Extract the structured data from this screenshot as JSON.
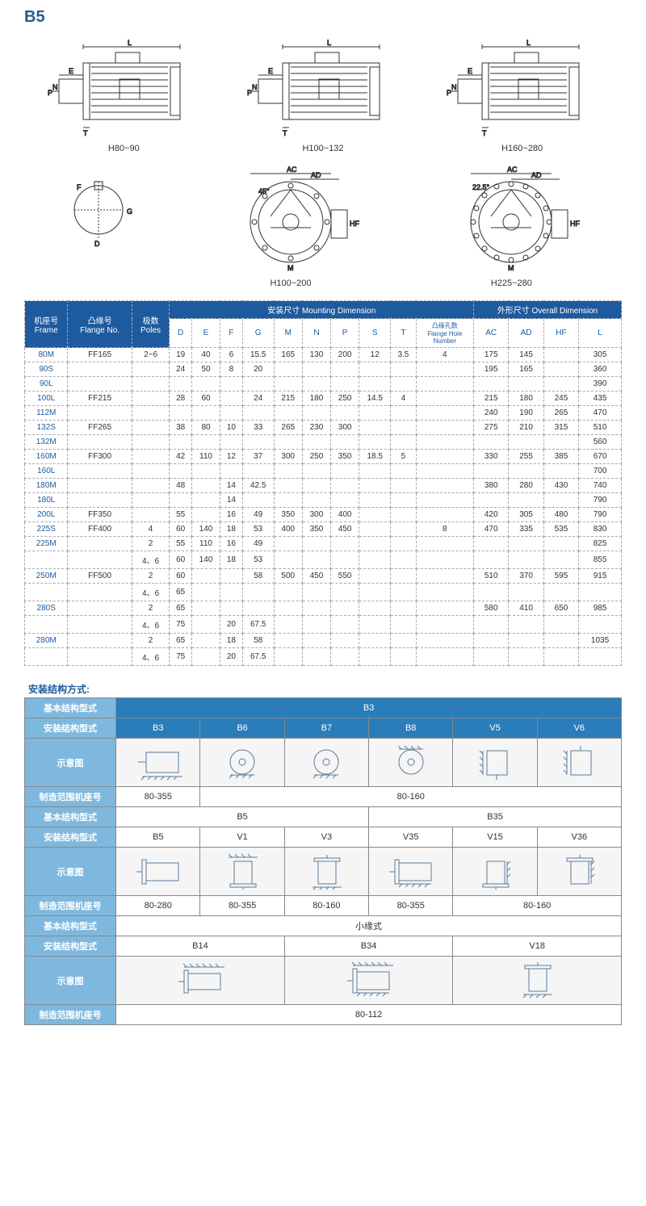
{
  "title": "B5",
  "diagrams": {
    "row1": [
      {
        "label": "H80~90",
        "dims": [
          "L",
          "E",
          "N",
          "P",
          "T"
        ]
      },
      {
        "label": "H100~132",
        "dims": [
          "L",
          "E",
          "N",
          "P",
          "T"
        ]
      },
      {
        "label": "H160~280",
        "dims": [
          "L",
          "E",
          "N",
          "P",
          "T"
        ]
      }
    ],
    "row2": [
      {
        "label": "",
        "dims": [
          "F",
          "D",
          "G"
        ]
      },
      {
        "label": "H100~200",
        "dims": [
          "AC",
          "AD",
          "45°",
          "HF",
          "M"
        ]
      },
      {
        "label": "H225~280",
        "dims": [
          "AC",
          "AD",
          "22.5°",
          "HF",
          "M"
        ]
      }
    ]
  },
  "mainTable": {
    "headerGroup1": "安装尺寸 Mounting Dimension",
    "headerGroup2": "外形尺寸 Overall Dimension",
    "columns": {
      "frame": "机座号\nFrame",
      "flange": "凸缘号\nFlange No.",
      "poles": "极数\nPoles",
      "D": "D",
      "E": "E",
      "F": "F",
      "G": "G",
      "M": "M",
      "N": "N",
      "P": "P",
      "S": "S",
      "T": "T",
      "flangeHole": "凸缘孔数\nFlange Hole\nNumber",
      "AC": "AC",
      "AD": "AD",
      "HF": "HF",
      "L": "L"
    },
    "rows": [
      {
        "frame": "80M",
        "flange": "FF165",
        "poles": "2~6",
        "D": "19",
        "E": "40",
        "F": "6",
        "G": "15.5",
        "M": "165",
        "N": "130",
        "P": "200",
        "S": "12",
        "T": "3.5",
        "FH": "4",
        "AC": "175",
        "AD": "145",
        "HF": "",
        "L": "305"
      },
      {
        "frame": "90S",
        "flange": "",
        "poles": "",
        "D": "24",
        "E": "50",
        "F": "8",
        "G": "20",
        "M": "",
        "N": "",
        "P": "",
        "S": "",
        "T": "",
        "FH": "",
        "AC": "195",
        "AD": "165",
        "HF": "",
        "L": "360"
      },
      {
        "frame": "90L",
        "flange": "",
        "poles": "",
        "D": "",
        "E": "",
        "F": "",
        "G": "",
        "M": "",
        "N": "",
        "P": "",
        "S": "",
        "T": "",
        "FH": "",
        "AC": "",
        "AD": "",
        "HF": "",
        "L": "390"
      },
      {
        "frame": "100L",
        "flange": "FF215",
        "poles": "",
        "D": "28",
        "E": "60",
        "F": "",
        "G": "24",
        "M": "215",
        "N": "180",
        "P": "250",
        "S": "14.5",
        "T": "4",
        "FH": "",
        "AC": "215",
        "AD": "180",
        "HF": "245",
        "L": "435"
      },
      {
        "frame": "112M",
        "flange": "",
        "poles": "",
        "D": "",
        "E": "",
        "F": "",
        "G": "",
        "M": "",
        "N": "",
        "P": "",
        "S": "",
        "T": "",
        "FH": "",
        "AC": "240",
        "AD": "190",
        "HF": "265",
        "L": "470"
      },
      {
        "frame": "132S",
        "flange": "FF265",
        "poles": "",
        "D": "38",
        "E": "80",
        "F": "10",
        "G": "33",
        "M": "265",
        "N": "230",
        "P": "300",
        "S": "",
        "T": "",
        "FH": "",
        "AC": "275",
        "AD": "210",
        "HF": "315",
        "L": "510"
      },
      {
        "frame": "132M",
        "flange": "",
        "poles": "",
        "D": "",
        "E": "",
        "F": "",
        "G": "",
        "M": "",
        "N": "",
        "P": "",
        "S": "",
        "T": "",
        "FH": "",
        "AC": "",
        "AD": "",
        "HF": "",
        "L": "560"
      },
      {
        "frame": "160M",
        "flange": "FF300",
        "poles": "",
        "D": "42",
        "E": "110",
        "F": "12",
        "G": "37",
        "M": "300",
        "N": "250",
        "P": "350",
        "S": "18.5",
        "T": "5",
        "FH": "",
        "AC": "330",
        "AD": "255",
        "HF": "385",
        "L": "670"
      },
      {
        "frame": "160L",
        "flange": "",
        "poles": "",
        "D": "",
        "E": "",
        "F": "",
        "G": "",
        "M": "",
        "N": "",
        "P": "",
        "S": "",
        "T": "",
        "FH": "",
        "AC": "",
        "AD": "",
        "HF": "",
        "L": "700"
      },
      {
        "frame": "180M",
        "flange": "",
        "poles": "",
        "D": "48",
        "E": "",
        "F": "14",
        "G": "42.5",
        "M": "",
        "N": "",
        "P": "",
        "S": "",
        "T": "",
        "FH": "",
        "AC": "380",
        "AD": "280",
        "HF": "430",
        "L": "740"
      },
      {
        "frame": "180L",
        "flange": "",
        "poles": "",
        "D": "",
        "E": "",
        "F": "14",
        "G": "",
        "M": "",
        "N": "",
        "P": "",
        "S": "",
        "T": "",
        "FH": "",
        "AC": "",
        "AD": "",
        "HF": "",
        "L": "790"
      },
      {
        "frame": "200L",
        "flange": "FF350",
        "poles": "",
        "D": "55",
        "E": "",
        "F": "16",
        "G": "49",
        "M": "350",
        "N": "300",
        "P": "400",
        "S": "",
        "T": "",
        "FH": "",
        "AC": "420",
        "AD": "305",
        "HF": "480",
        "L": "790"
      },
      {
        "frame": "225S",
        "flange": "FF400",
        "poles": "4",
        "D": "60",
        "E": "140",
        "F": "18",
        "G": "53",
        "M": "400",
        "N": "350",
        "P": "450",
        "S": "",
        "T": "",
        "FH": "8",
        "AC": "470",
        "AD": "335",
        "HF": "535",
        "L": "830"
      },
      {
        "frame": "225M",
        "flange": "",
        "poles": "2",
        "D": "55",
        "E": "110",
        "F": "16",
        "G": "49",
        "M": "",
        "N": "",
        "P": "",
        "S": "",
        "T": "",
        "FH": "",
        "AC": "",
        "AD": "",
        "HF": "",
        "L": "825"
      },
      {
        "frame": "",
        "flange": "",
        "poles": "4、6",
        "D": "60",
        "E": "140",
        "F": "18",
        "G": "53",
        "M": "",
        "N": "",
        "P": "",
        "S": "",
        "T": "",
        "FH": "",
        "AC": "",
        "AD": "",
        "HF": "",
        "L": "855"
      },
      {
        "frame": "250M",
        "flange": "FF500",
        "poles": "2",
        "D": "60",
        "E": "",
        "F": "",
        "G": "58",
        "M": "500",
        "N": "450",
        "P": "550",
        "S": "",
        "T": "",
        "FH": "",
        "AC": "510",
        "AD": "370",
        "HF": "595",
        "L": "915"
      },
      {
        "frame": "",
        "flange": "",
        "poles": "4、6",
        "D": "65",
        "E": "",
        "F": "",
        "G": "",
        "M": "",
        "N": "",
        "P": "",
        "S": "",
        "T": "",
        "FH": "",
        "AC": "",
        "AD": "",
        "HF": "",
        "L": ""
      },
      {
        "frame": "280S",
        "flange": "",
        "poles": "2",
        "D": "65",
        "E": "",
        "F": "",
        "G": "",
        "M": "",
        "N": "",
        "P": "",
        "S": "",
        "T": "",
        "FH": "",
        "AC": "580",
        "AD": "410",
        "HF": "650",
        "L": "985"
      },
      {
        "frame": "",
        "flange": "",
        "poles": "4、6",
        "D": "75",
        "E": "",
        "F": "20",
        "G": "67.5",
        "M": "",
        "N": "",
        "P": "",
        "S": "",
        "T": "",
        "FH": "",
        "AC": "",
        "AD": "",
        "HF": "",
        "L": ""
      },
      {
        "frame": "280M",
        "flange": "",
        "poles": "2",
        "D": "65",
        "E": "",
        "F": "18",
        "G": "58",
        "M": "",
        "N": "",
        "P": "",
        "S": "",
        "T": "",
        "FH": "",
        "AC": "",
        "AD": "",
        "HF": "",
        "L": "1035"
      },
      {
        "frame": "",
        "flange": "",
        "poles": "4、6",
        "D": "75",
        "E": "",
        "F": "20",
        "G": "67.5",
        "M": "",
        "N": "",
        "P": "",
        "S": "",
        "T": "",
        "FH": "",
        "AC": "",
        "AD": "",
        "HF": "",
        "L": ""
      }
    ]
  },
  "mountTable": {
    "title": "安装结构方式:",
    "labels": {
      "basicType": "基本结构型式",
      "mountType": "安装结构型式",
      "diagram": "示意图",
      "frameRange": "制造范围机座号"
    },
    "sections": [
      {
        "basic": "B3",
        "types": [
          "B3",
          "B6",
          "B7",
          "B8",
          "V5",
          "V6"
        ],
        "ranges": [
          "80-355",
          "80-160",
          "80-160",
          "80-160",
          "80-160",
          "80-160"
        ],
        "rangeSpans": [
          1,
          5
        ]
      },
      {
        "basic": "B5",
        "basic2": "B35",
        "types": [
          "B5",
          "V1",
          "V3",
          "V35",
          "V15",
          "V36"
        ],
        "ranges": [
          "80-280",
          "80-355",
          "80-160",
          "80-355",
          "80-160",
          "80-160"
        ],
        "rangeSpans": [
          1,
          1,
          1,
          1,
          2
        ]
      },
      {
        "basic": "小缘式",
        "types": [
          "B14",
          "B34",
          "V18"
        ],
        "ranges": [
          "80-112"
        ],
        "rangeSpans": [
          3
        ]
      }
    ]
  },
  "colors": {
    "titleBlue": "#2a5a8a",
    "headerBlue": "#1e5a9e",
    "mountBlue": "#2a7db8",
    "sideBlue": "#7fb8de"
  }
}
